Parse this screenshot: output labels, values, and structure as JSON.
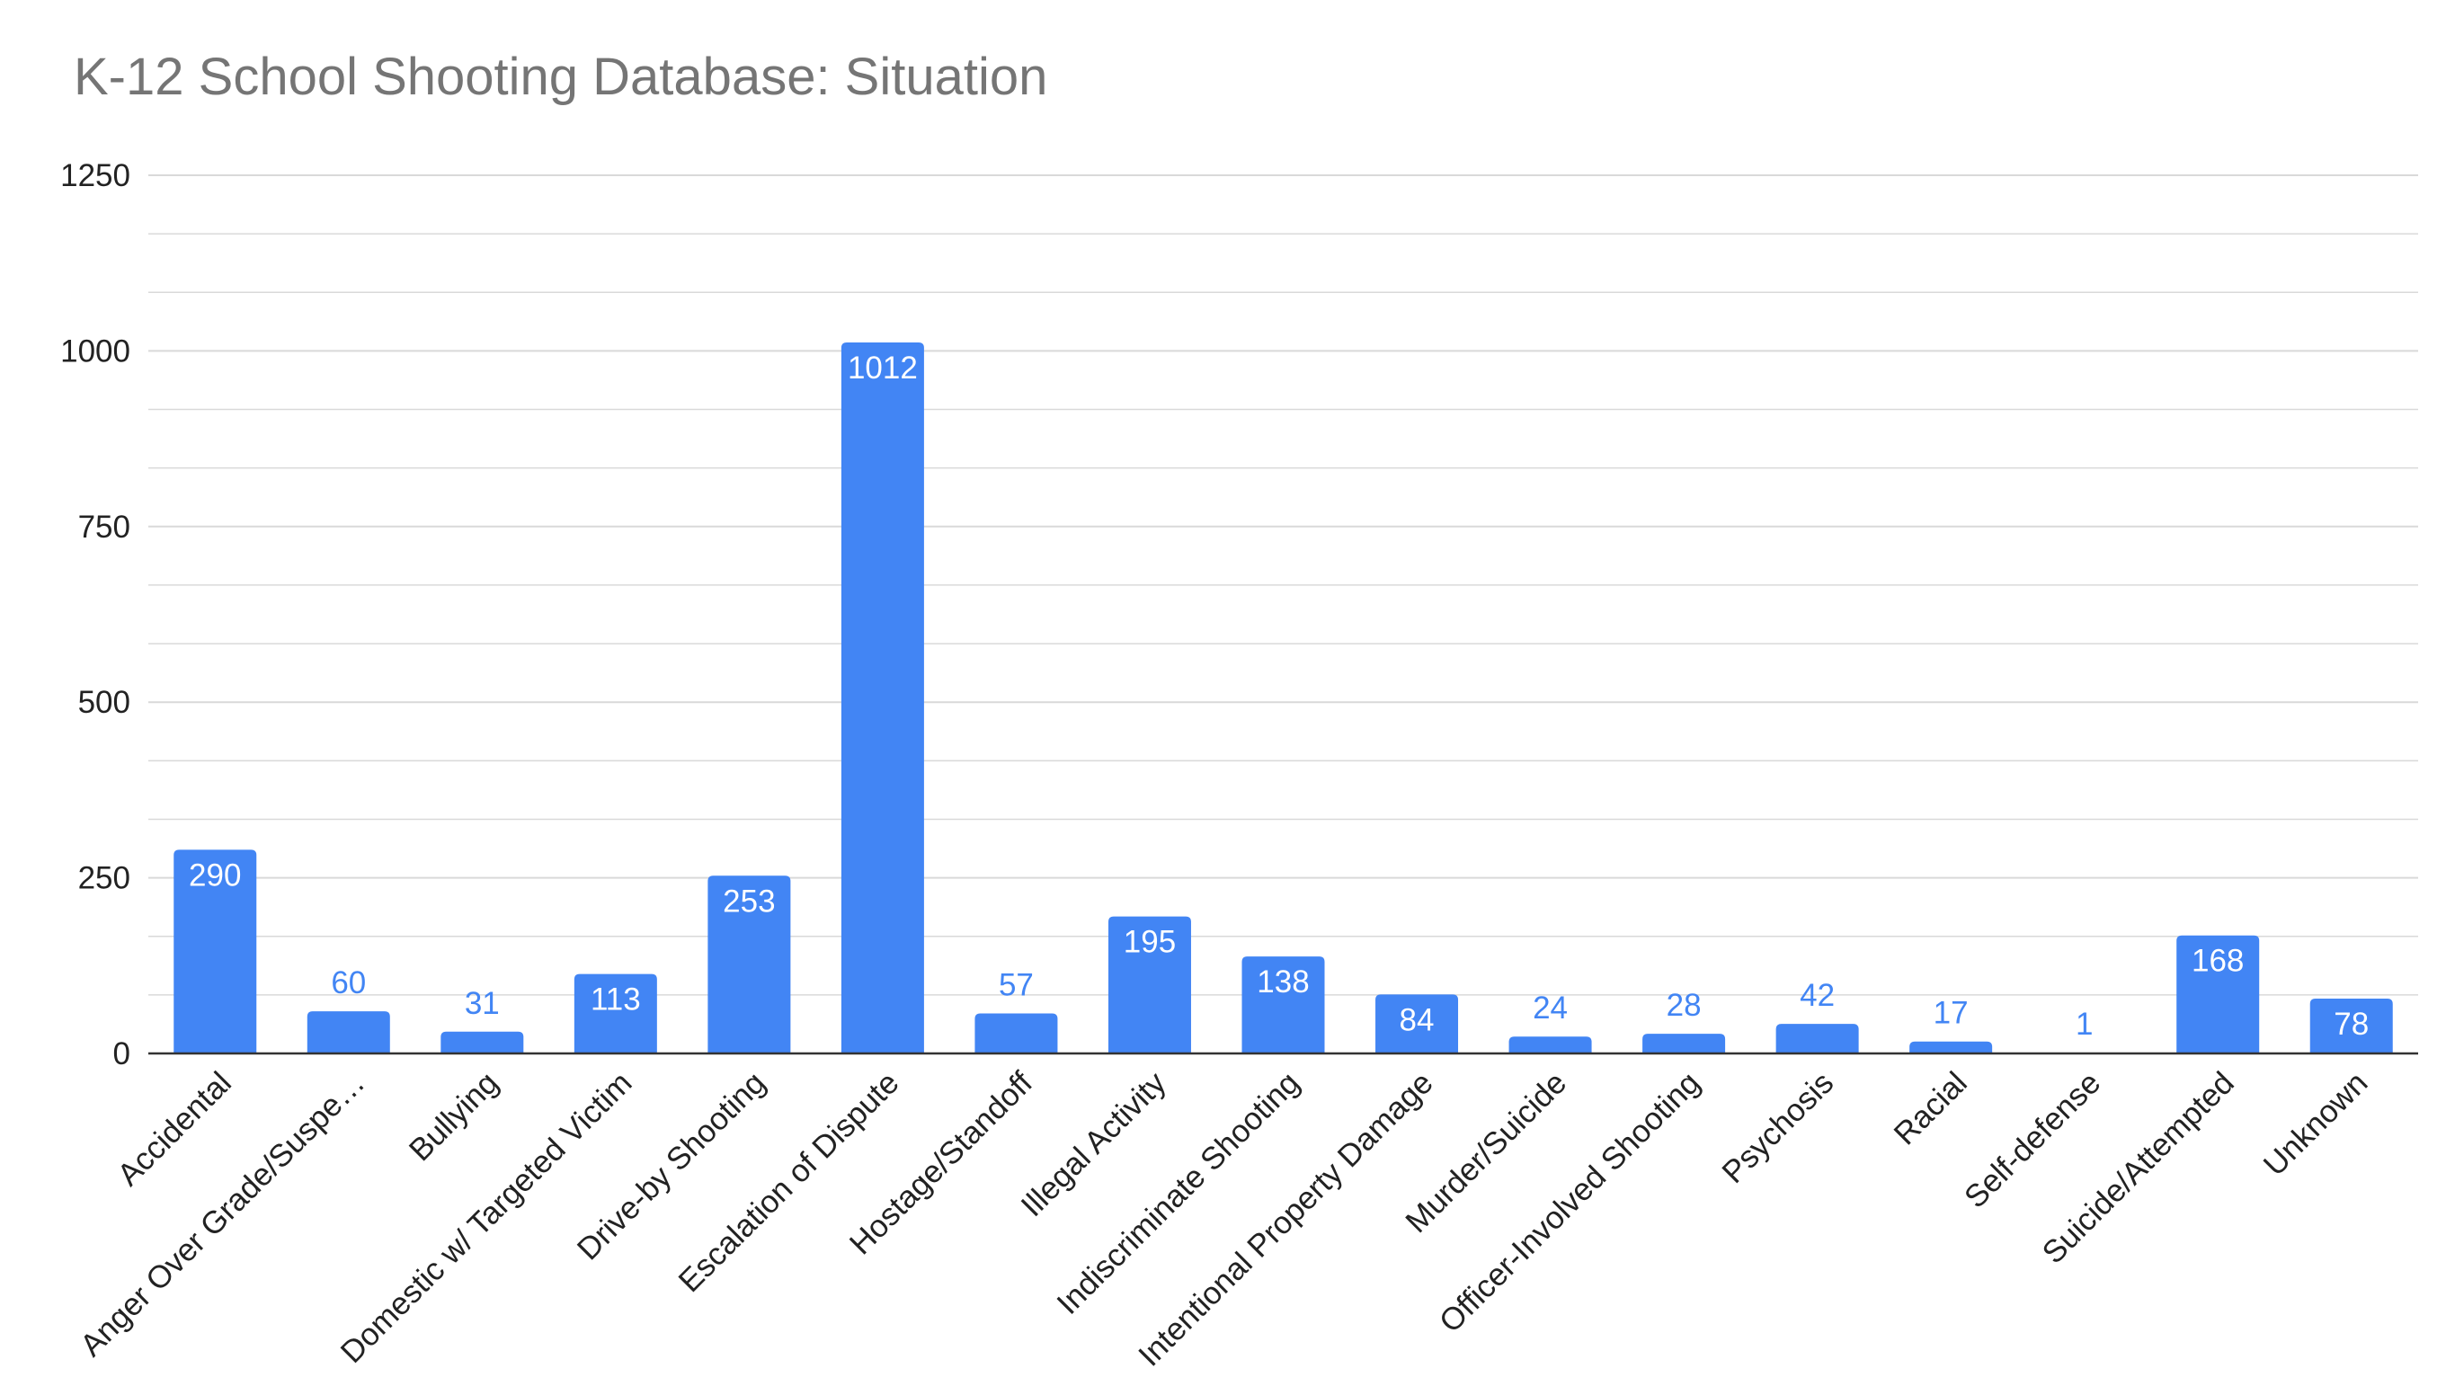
{
  "chart_data": {
    "type": "bar",
    "title": "K-12 School Shooting Database: Situation",
    "xlabel": "",
    "ylabel": "",
    "ylim": [
      0,
      1250
    ],
    "yticks": [
      0,
      250,
      500,
      750,
      1000,
      1250
    ],
    "grid": true,
    "legend": "none",
    "categories": [
      "Accidental",
      "Anger Over Grade/Suspe…",
      "Bullying",
      "Domestic w/ Targeted Victim",
      "Drive-by Shooting",
      "Escalation of Dispute",
      "Hostage/Standoff",
      "Illegal Activity",
      "Indiscriminate Shooting",
      "Intentional Property Damage",
      "Murder/Suicide",
      "Officer-Involved Shooting",
      "Psychosis",
      "Racial",
      "Self-defense",
      "Suicide/Attempted",
      "Unknown"
    ],
    "values": [
      290,
      60,
      31,
      113,
      253,
      1012,
      57,
      195,
      138,
      84,
      24,
      28,
      42,
      17,
      1,
      168,
      78
    ],
    "data_labels": [
      "290",
      "60",
      "31",
      "113",
      "253",
      "1012",
      "57",
      "195",
      "138",
      "84",
      "24",
      "28",
      "42",
      "17",
      "1",
      "168",
      "78"
    ],
    "colors": {
      "bar": "#4285F4",
      "inside_label": "#FFFFFF",
      "outside_label": "#4285F4",
      "grid": "#D9D9D9",
      "axis": "#333333",
      "title": "#757575"
    }
  }
}
